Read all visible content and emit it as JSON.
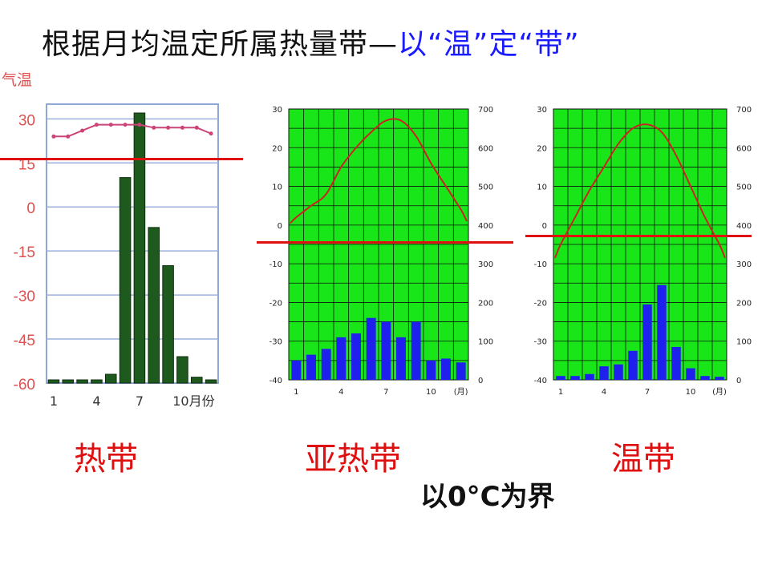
{
  "title": {
    "main": "根据月均温定所属热量带",
    "dash": "—",
    "highlight": "以“温”定“带”"
  },
  "labels": {
    "tropical": "热带",
    "subtropical": "亚热带",
    "temperate": "温带",
    "boundary_note": "以0°C为界"
  },
  "colors": {
    "title": "#111111",
    "highlight": "#1a1aff",
    "zone_label": "#e01010",
    "boundary_line": "#e01010",
    "chart_green_bg": "#19e619",
    "bar_blue": "#2020ee",
    "bar_darkgreen": "#1e5a1e",
    "temp_curve": "#cc2222"
  },
  "chart_data": [
    {
      "type": "bar",
      "id": "tropical",
      "ylabel": "气温",
      "yticks": [
        "30",
        "15",
        "0",
        "-15",
        "-30",
        "-45",
        "-60"
      ],
      "ylim": [
        -60,
        35
      ],
      "xticks": [
        "1",
        "4",
        "7",
        "10月份"
      ],
      "months": [
        1,
        2,
        3,
        4,
        5,
        6,
        7,
        8,
        9,
        10,
        11,
        12
      ],
      "bars": [
        -60,
        -60,
        -60,
        -60,
        -57,
        10,
        32,
        -7,
        -20,
        -51,
        -58,
        -59
      ],
      "temperature": [
        24,
        24,
        26,
        28,
        28,
        28,
        28,
        27,
        27,
        27,
        27,
        25
      ],
      "boundary_value": 13,
      "grid": true
    },
    {
      "type": "line",
      "id": "subtropical",
      "yticks_left": [
        "30",
        "20",
        "10",
        "0",
        "-10",
        "-20",
        "-30",
        "-40"
      ],
      "ylim_left": [
        -40,
        30
      ],
      "yticks_right": [
        "700",
        "600",
        "500",
        "400",
        "300",
        "200",
        "100",
        "0"
      ],
      "ylim_right": [
        0,
        700
      ],
      "xticks": [
        "1",
        "4",
        "7",
        "10",
        "(月)"
      ],
      "months": [
        1,
        2,
        3,
        4,
        5,
        6,
        7,
        8,
        9,
        10,
        11,
        12
      ],
      "temperature": [
        2,
        5,
        8,
        15,
        20,
        24,
        27,
        27,
        23,
        16,
        10,
        4
      ],
      "precipitation": [
        50,
        65,
        80,
        110,
        120,
        160,
        150,
        110,
        150,
        50,
        55,
        45
      ],
      "boundary_value": -2,
      "grid": true
    },
    {
      "type": "line",
      "id": "temperate",
      "yticks_left": [
        "30",
        "20",
        "10",
        "0",
        "-10",
        "-20",
        "-30",
        "-40"
      ],
      "ylim_left": [
        -40,
        30
      ],
      "yticks_right": [
        "700",
        "600",
        "500",
        "400",
        "300",
        "200",
        "100",
        "0"
      ],
      "ylim_right": [
        0,
        700
      ],
      "xticks": [
        "1",
        "4",
        "7",
        "10",
        "(月)"
      ],
      "months": [
        1,
        2,
        3,
        4,
        5,
        6,
        7,
        8,
        9,
        10,
        11,
        12
      ],
      "temperature": [
        -5,
        2,
        9,
        15,
        21,
        25,
        26,
        24,
        18,
        10,
        2,
        -5
      ],
      "precipitation": [
        10,
        10,
        15,
        35,
        40,
        75,
        195,
        245,
        85,
        30,
        10,
        8
      ],
      "boundary_value": 0,
      "grid": true
    }
  ]
}
